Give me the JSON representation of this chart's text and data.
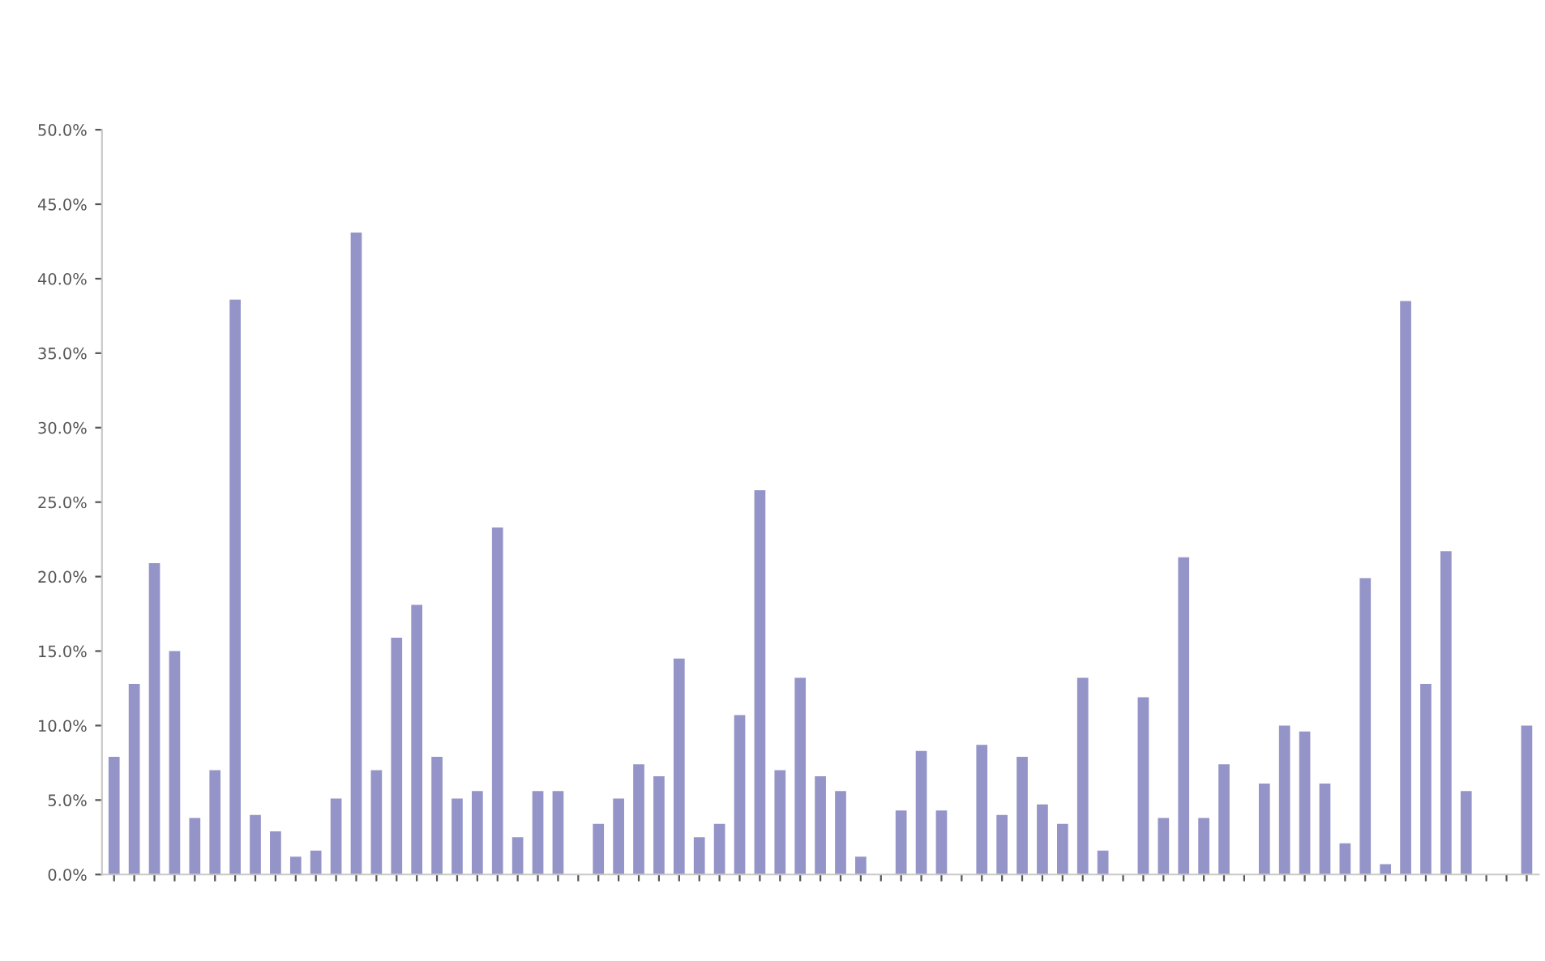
{
  "chart_data": {
    "type": "bar",
    "categories": [
      null,
      null,
      null,
      null,
      null,
      null,
      null,
      null,
      null,
      null,
      null,
      null,
      null,
      null,
      null,
      null,
      null,
      null,
      null,
      null,
      null,
      null,
      null,
      null,
      null,
      null,
      null,
      null,
      null,
      null,
      null,
      null,
      null,
      null,
      null,
      null,
      null,
      null,
      null,
      null,
      null,
      null,
      null,
      null,
      null,
      null,
      null,
      null,
      null,
      null,
      null,
      null,
      null,
      null,
      null,
      null,
      null,
      null,
      null,
      null,
      null,
      null,
      null,
      null,
      null,
      null,
      null,
      null,
      null,
      null,
      null
    ],
    "values": [
      7.9,
      12.8,
      20.9,
      15.0,
      3.8,
      7.0,
      38.6,
      4.0,
      2.9,
      1.2,
      1.6,
      5.1,
      43.1,
      7.0,
      15.9,
      18.1,
      7.9,
      5.1,
      5.6,
      23.3,
      2.5,
      5.6,
      5.6,
      null,
      3.4,
      5.1,
      7.4,
      6.6,
      14.5,
      2.5,
      3.4,
      10.7,
      25.8,
      7.0,
      13.2,
      6.6,
      5.6,
      1.2,
      null,
      4.3,
      8.3,
      4.3,
      null,
      8.7,
      4.0,
      7.9,
      4.7,
      3.4,
      13.2,
      1.6,
      null,
      11.9,
      3.8,
      21.3,
      3.8,
      7.4,
      null,
      6.1,
      10.0,
      9.6,
      6.1,
      2.1,
      19.9,
      0.7,
      38.5,
      12.8,
      21.7,
      5.6,
      null,
      null,
      10.0
    ],
    "color": "#9494c8",
    "ylim": [
      0,
      50
    ],
    "yticks": [
      {
        "value": 0,
        "label": "0.0%"
      },
      {
        "value": 5,
        "label": "5.0%"
      },
      {
        "value": 10,
        "label": "10.0%"
      },
      {
        "value": 15,
        "label": "15.0%"
      },
      {
        "value": 20,
        "label": "20.0%"
      },
      {
        "value": 25,
        "label": "25.0%"
      },
      {
        "value": 30,
        "label": "30.0%"
      },
      {
        "value": 35,
        "label": "35.0%"
      },
      {
        "value": 40,
        "label": "40.0%"
      },
      {
        "value": 45,
        "label": "45.0%"
      },
      {
        "value": 50,
        "label": "50.0%"
      }
    ],
    "grid": false
  }
}
